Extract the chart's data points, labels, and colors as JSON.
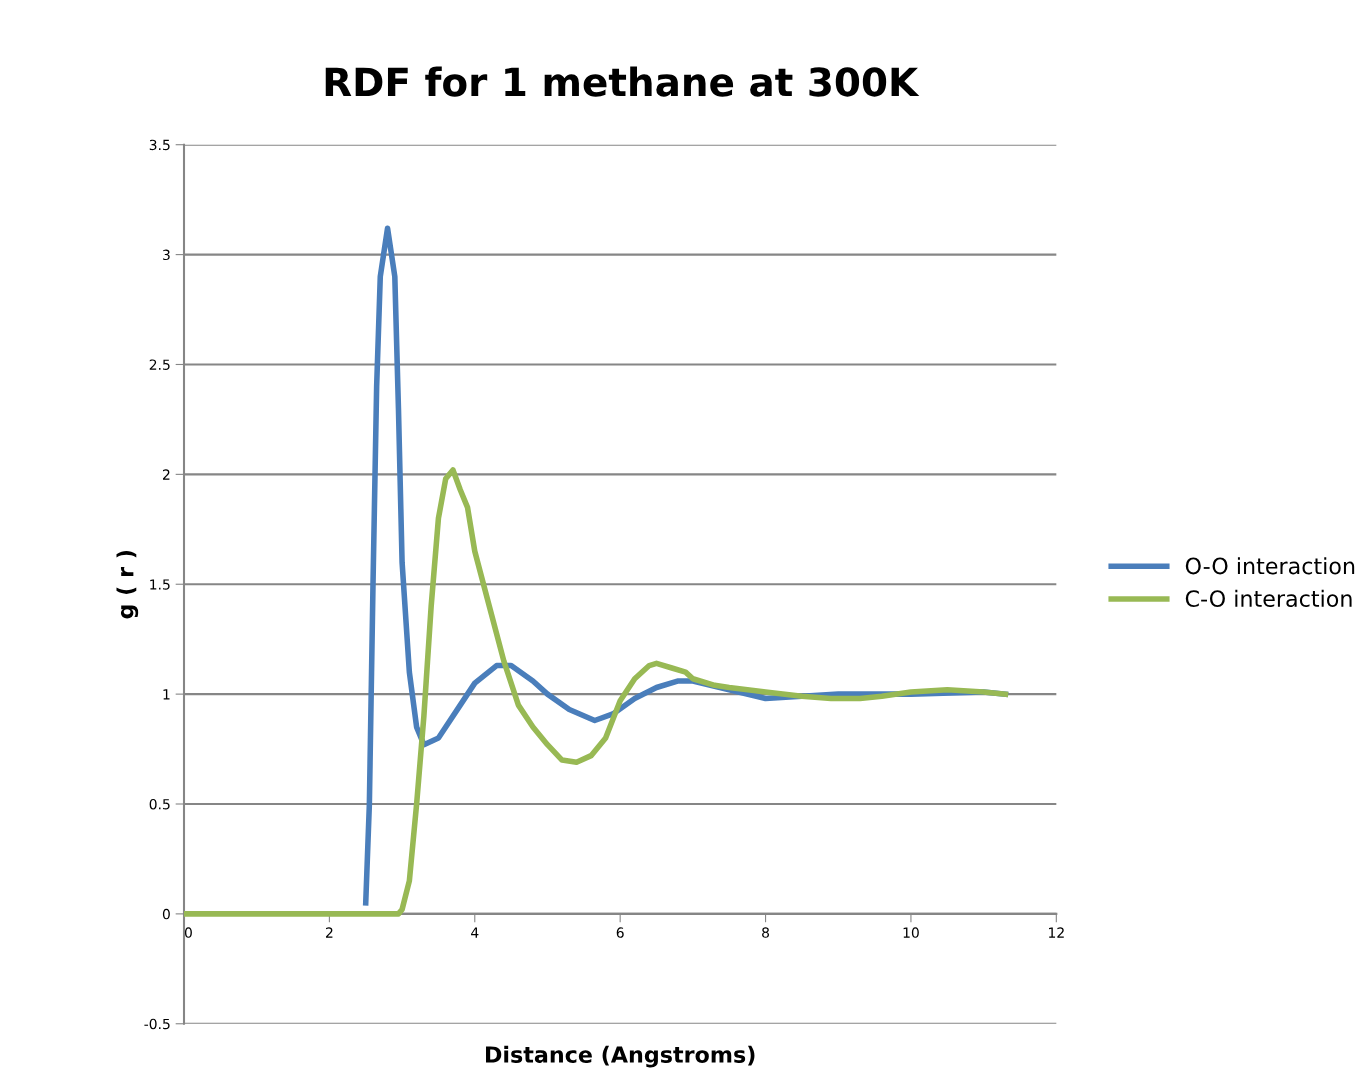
{
  "chart_data": {
    "type": "line",
    "title": "RDF for 1 methane at 300K",
    "xlabel": "Distance (Angstroms)",
    "ylabel": "g ( r )",
    "xlim": [
      0,
      12
    ],
    "xticks": [
      0,
      2,
      4,
      6,
      8,
      10,
      12
    ],
    "ylim": [
      -0.5,
      3.5
    ],
    "yticks": [
      {
        "value": -0.5,
        "label": "-0.5"
      },
      0,
      0.5,
      1,
      1.5,
      2,
      2.5,
      3,
      3.5
    ],
    "grid": "y",
    "legend": "right",
    "marker": "none",
    "line_style": "solid",
    "series": [
      {
        "name": "O-O interaction",
        "color": "#4a7ebb",
        "x": [
          2.5,
          2.55,
          2.6,
          2.65,
          2.7,
          2.8,
          2.9,
          2.95,
          3.0,
          3.1,
          3.2,
          3.3,
          3.5,
          3.8,
          4.0,
          4.3,
          4.5,
          4.8,
          5.0,
          5.3,
          5.65,
          5.9,
          6.2,
          6.5,
          6.8,
          7.0,
          7.5,
          8.0,
          8.5,
          9.0,
          10.0,
          11.0,
          11.3
        ],
        "values": [
          0.05,
          0.5,
          1.5,
          2.4,
          2.9,
          3.12,
          2.9,
          2.3,
          1.6,
          1.1,
          0.85,
          0.77,
          0.8,
          0.95,
          1.05,
          1.13,
          1.13,
          1.06,
          1.0,
          0.93,
          0.88,
          0.91,
          0.98,
          1.03,
          1.06,
          1.06,
          1.02,
          0.98,
          0.99,
          1.0,
          1.0,
          1.01,
          1.0
        ]
      },
      {
        "name": "C-O interaction",
        "color": "#98b954",
        "x": [
          0,
          1,
          2,
          2.95,
          3.0,
          3.1,
          3.2,
          3.3,
          3.4,
          3.5,
          3.6,
          3.7,
          3.8,
          3.9,
          4.0,
          4.2,
          4.4,
          4.6,
          4.8,
          5.0,
          5.2,
          5.4,
          5.6,
          5.8,
          6.0,
          6.2,
          6.4,
          6.5,
          6.7,
          6.9,
          7.0,
          7.3,
          7.5,
          8.0,
          8.5,
          8.9,
          9.3,
          9.6,
          10.0,
          10.5,
          11.0,
          11.3
        ],
        "values": [
          0,
          0,
          0,
          0,
          0.02,
          0.15,
          0.5,
          0.9,
          1.4,
          1.8,
          1.98,
          2.02,
          1.93,
          1.85,
          1.65,
          1.4,
          1.15,
          0.95,
          0.85,
          0.77,
          0.7,
          0.69,
          0.72,
          0.8,
          0.97,
          1.07,
          1.13,
          1.14,
          1.12,
          1.1,
          1.07,
          1.04,
          1.03,
          1.01,
          0.99,
          0.98,
          0.98,
          0.99,
          1.01,
          1.02,
          1.01,
          1.0
        ]
      }
    ]
  }
}
